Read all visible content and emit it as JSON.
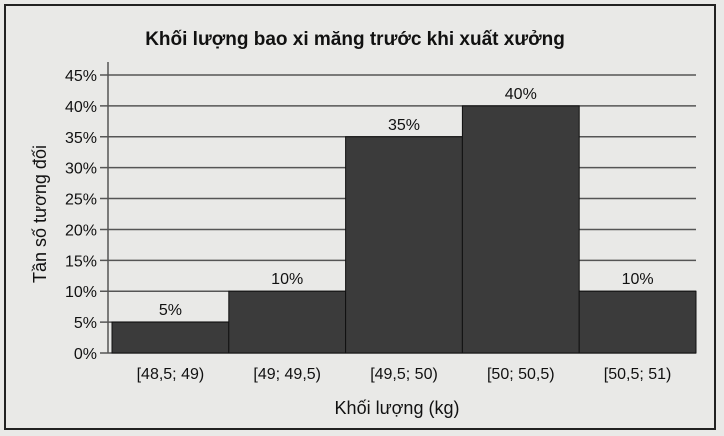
{
  "chart_data": {
    "type": "bar",
    "title": "Khối lượng bao xi măng trước khi xuất xưởng",
    "xlabel": "Khối lượng (kg)",
    "ylabel": "Tần số tương đối",
    "categories": [
      "[48,5; 49)",
      "[49; 49,5)",
      "[49,5; 50)",
      "[50; 50,5)",
      "[50,5; 51)"
    ],
    "values": [
      5,
      10,
      35,
      40,
      10
    ],
    "data_labels": [
      "5%",
      "10%",
      "35%",
      "40%",
      "10%"
    ],
    "yticks": [
      "0%",
      "5%",
      "10%",
      "15%",
      "20%",
      "25%",
      "30%",
      "35%",
      "40%",
      "45%"
    ],
    "ylim": [
      0,
      45
    ],
    "grid": true,
    "histogram": true,
    "bar_color": "#3b3b3b"
  }
}
